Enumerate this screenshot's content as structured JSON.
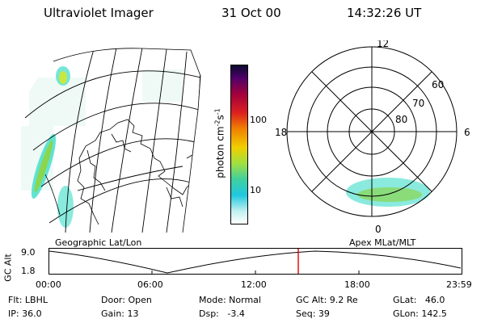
{
  "header": {
    "instrument": "Ultraviolet Imager",
    "date": "31 Oct 00",
    "time": "14:32:26 UT"
  },
  "geo_panel": {
    "label": "Geographic Lat/Lon"
  },
  "polar_panel": {
    "label": "Apex MLat/MLT",
    "mlt_labels": [
      "12",
      "18",
      "6",
      "0"
    ],
    "lat_labels": [
      "60",
      "70",
      "80"
    ]
  },
  "colorbar": {
    "unit_label": "photon cm",
    "unit_exp1": "-2",
    "unit_mid": "s",
    "unit_exp2": "-1",
    "tick_labels": [
      "100",
      "10"
    ]
  },
  "alt_plot": {
    "ylabel": "GC Alt",
    "y_ticks": [
      "9.0",
      "1.8"
    ],
    "x_ticks": [
      "00:00",
      "06:00",
      "12:00",
      "18:00",
      "23:59"
    ]
  },
  "info": {
    "flt": "Flt: LBHL",
    "ip": "IP: 36.0",
    "door": "Door: Open",
    "gain": "Gain: 13",
    "mode": "Mode: Normal",
    "dsp": "Dsp:   -3.4",
    "gcalt": "GC Alt: 9.2 Re",
    "seq": "Seq: 39",
    "glat": "GLat:   46.0",
    "glon": "GLon: 142.5"
  },
  "colors": {
    "emission_cyan": "#3cdcc8",
    "emission_green": "#8ad650",
    "marker_red": "#e00000"
  }
}
